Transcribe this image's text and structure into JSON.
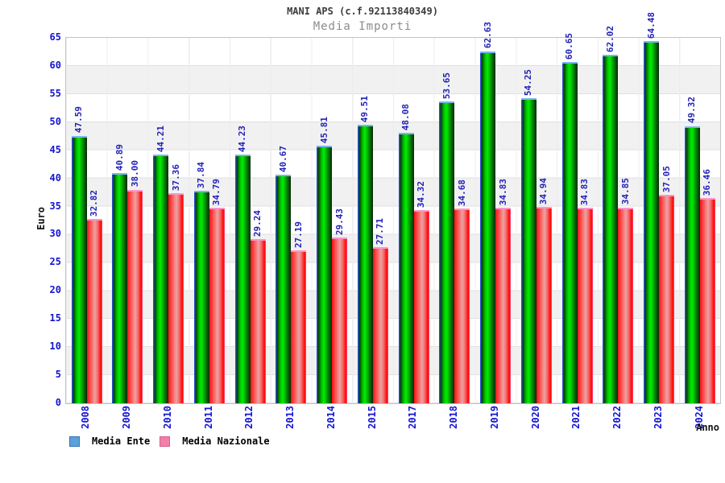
{
  "header": {
    "title": "MANI APS (c.f.92113840349)",
    "subtitle": "Media Importi"
  },
  "chart_data": {
    "type": "bar",
    "title": "MANI APS (c.f.92113840349)",
    "subtitle": "Media Importi",
    "xlabel": "Anno",
    "ylabel": "Euro",
    "ylim": [
      0,
      65
    ],
    "ytick_step": 5,
    "grid": "horizontal bands every 5 units + light vertical separators",
    "legend_position": "bottom-left",
    "value_label_decimals": 2,
    "categories": [
      "2008",
      "2009",
      "2010",
      "2011",
      "2012",
      "2013",
      "2014",
      "2015",
      "2017",
      "2018",
      "2019",
      "2020",
      "2021",
      "2022",
      "2023",
      "2024"
    ],
    "series": [
      {
        "name": "Media Ente",
        "values": [
          47.59,
          40.89,
          44.21,
          37.84,
          44.23,
          40.67,
          45.81,
          49.51,
          48.08,
          53.65,
          62.63,
          54.25,
          60.65,
          62.02,
          64.48,
          49.32
        ]
      },
      {
        "name": "Media Nazionale",
        "values": [
          32.82,
          38.0,
          37.36,
          34.79,
          29.24,
          27.19,
          29.43,
          27.71,
          34.32,
          34.68,
          34.83,
          34.94,
          34.83,
          34.85,
          37.05,
          36.46
        ]
      }
    ],
    "colors": {
      "bar_ente_main": "#00e000",
      "bar_nazionale_main": "#ff2222",
      "bar_ente_cap": "#79b5ea",
      "bar_nazionale_cap": "#ff93c8",
      "legend_ente_swatch": "#5da0d8",
      "legend_nazionale_swatch": "#f080a8",
      "axis_tick_text": "#1414d2",
      "value_label_text": "#2222b8",
      "title_text": "#3c3c3c",
      "subtitle_text": "#8c8c8c"
    }
  }
}
